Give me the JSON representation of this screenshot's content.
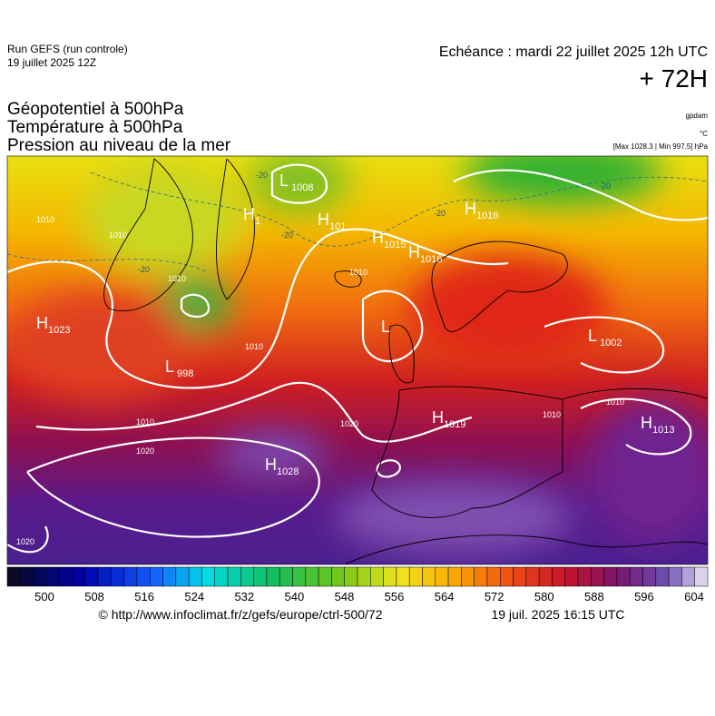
{
  "header": {
    "run": "Run GEFS (run controle)",
    "run_date": "19 juillet 2025 12Z",
    "valid": "Echéance : mardi 22 juillet 2025 12h UTC",
    "lead": "+ 72H"
  },
  "titles": [
    "Géopotentiel à 500hPa",
    "Température à 500hPa",
    "Pression au niveau de la mer"
  ],
  "units": {
    "geopotential": "gpdam",
    "temperature": "°C",
    "pressure": "[Max 1028.3 | Min 997.5] hPa"
  },
  "map": {
    "centers": [
      {
        "letter": "L",
        "value": "1008"
      },
      {
        "letter": "H",
        "value": "1"
      },
      {
        "letter": "H",
        "value": "101"
      },
      {
        "letter": "H",
        "value": "1015"
      },
      {
        "letter": "H",
        "value": "1016"
      },
      {
        "letter": "H",
        "value": "1016"
      },
      {
        "letter": "H",
        "value": "1023"
      },
      {
        "letter": "L",
        "value": "998"
      },
      {
        "letter": "L",
        "value": "1002"
      },
      {
        "letter": "H",
        "value": "1019"
      },
      {
        "letter": "H",
        "value": "1013"
      },
      {
        "letter": "H",
        "value": "1028"
      },
      {
        "letter": "L",
        "value": ""
      }
    ],
    "isobar_labels": [
      "1010",
      "1010",
      "1010",
      "1010",
      "1010",
      "1020",
      "1020",
      "1010",
      "1020",
      "1010",
      "1010"
    ],
    "temperature_labels": [
      "-20",
      "-20",
      "-20",
      "-20",
      "-20"
    ]
  },
  "colorbar": {
    "ticks": [
      500,
      508,
      516,
      524,
      532,
      540,
      548,
      556,
      564,
      572,
      580,
      588,
      596,
      604
    ]
  },
  "footer": {
    "url": "© http://www.infoclimat.fr/z/gefs/europe/ctrl-500/72",
    "generated": "19 juil. 2025 16:15 UTC"
  }
}
